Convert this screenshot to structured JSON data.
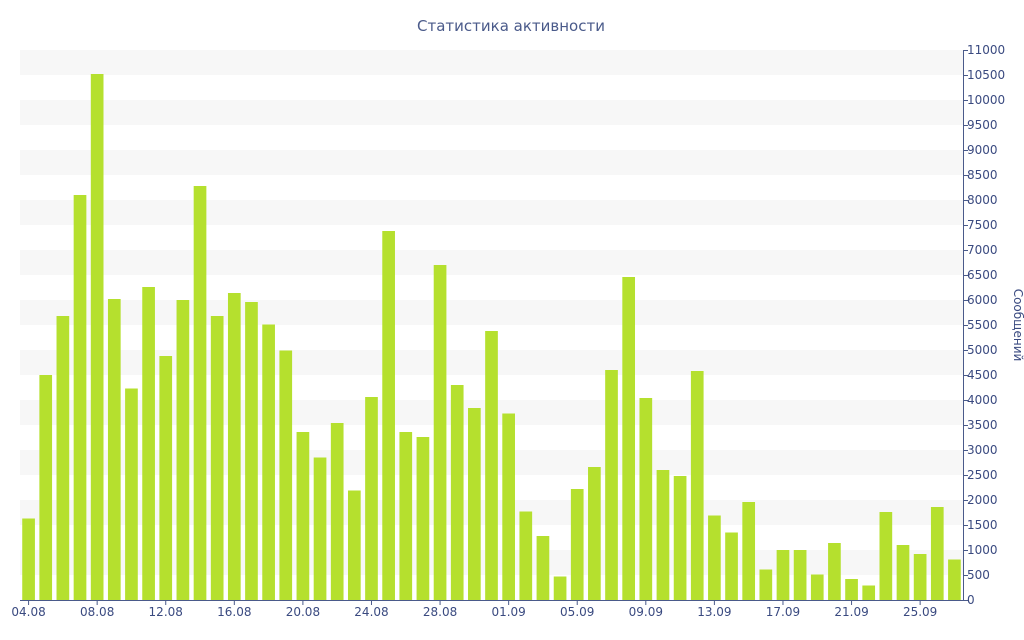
{
  "chart_data": {
    "type": "bar",
    "title": "Статистика активности",
    "xlabel": "",
    "ylabel": "Сообщений",
    "ylim": [
      0,
      11000
    ],
    "y_ticks": [
      0,
      500,
      1000,
      1500,
      2000,
      2500,
      3000,
      3500,
      4000,
      4500,
      5000,
      5500,
      6000,
      6500,
      7000,
      7500,
      8000,
      8500,
      9000,
      9500,
      10000,
      10500,
      11000
    ],
    "x_tick_labels": [
      "04.08",
      "08.08",
      "12.08",
      "16.08",
      "20.08",
      "24.08",
      "28.08",
      "01.09",
      "05.09",
      "09.09",
      "13.09",
      "17.09",
      "21.09",
      "25.09"
    ],
    "grid": "alternating horizontal bands",
    "y_axis_position": "right",
    "bar_color": "#b5e02e",
    "categories": [
      "04.08",
      "05.08",
      "06.08",
      "07.08",
      "08.08",
      "09.08",
      "10.08",
      "11.08",
      "12.08",
      "13.08",
      "14.08",
      "15.08",
      "16.08",
      "17.08",
      "18.08",
      "19.08",
      "20.08",
      "21.08",
      "22.08",
      "23.08",
      "24.08",
      "25.08",
      "26.08",
      "27.08",
      "28.08",
      "29.08",
      "30.08",
      "31.08",
      "01.09",
      "02.09",
      "03.09",
      "04.09",
      "05.09",
      "06.09",
      "07.09",
      "08.09",
      "09.09",
      "10.09",
      "11.09",
      "12.09",
      "13.09",
      "14.09",
      "15.09",
      "16.09",
      "17.09",
      "18.09",
      "19.09",
      "20.09",
      "21.09",
      "22.09",
      "23.09",
      "24.09",
      "25.09",
      "26.09",
      "27.09"
    ],
    "values": [
      1630,
      4500,
      5680,
      8100,
      10520,
      6020,
      4230,
      6260,
      4880,
      6000,
      8280,
      5680,
      6140,
      5960,
      5510,
      4990,
      3360,
      2850,
      3540,
      2190,
      4060,
      7380,
      3360,
      3260,
      6700,
      4300,
      3840,
      5380,
      3730,
      1770,
      1280,
      470,
      2220,
      2660,
      4600,
      6460,
      4040,
      2600,
      2480,
      4580,
      1690,
      1350,
      1960,
      610,
      1000,
      1000,
      510,
      1140,
      420,
      290,
      1760,
      1100,
      920,
      1860,
      810
    ]
  }
}
